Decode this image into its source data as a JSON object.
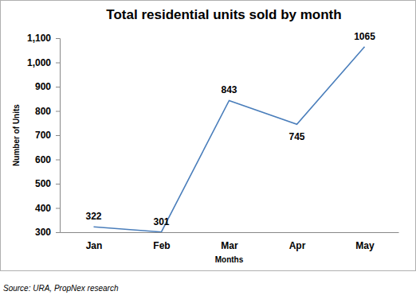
{
  "chart_data": {
    "type": "line",
    "title": "Total residential units sold by month",
    "x_label": "Months",
    "y_label": "Number of Units",
    "source": "Source: URA, PropNex research",
    "categories": [
      "Jan",
      "Feb",
      "Mar",
      "Apr",
      "May"
    ],
    "values": [
      322,
      301,
      843,
      745,
      1065
    ],
    "color": "#4a7ebb",
    "ylim": [
      300,
      1100
    ],
    "yticks": [
      300,
      400,
      500,
      600,
      700,
      800,
      900,
      {
        "value": 1000,
        "label": "1,000"
      },
      {
        "value": 1100,
        "label": "1,100"
      }
    ],
    "grid": false,
    "data_labels": true
  }
}
